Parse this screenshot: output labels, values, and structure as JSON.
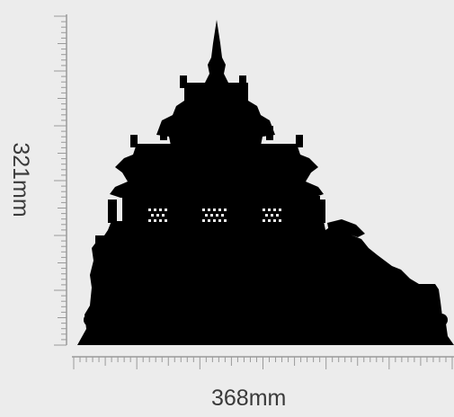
{
  "dimensions": {
    "height_label": "321mm",
    "width_label": "368mm"
  },
  "artwork": {
    "subject": "pagoda-silhouette",
    "fill_color": "#000000",
    "background_color": "#ececec",
    "ruler_color": "#9a9a9a"
  }
}
